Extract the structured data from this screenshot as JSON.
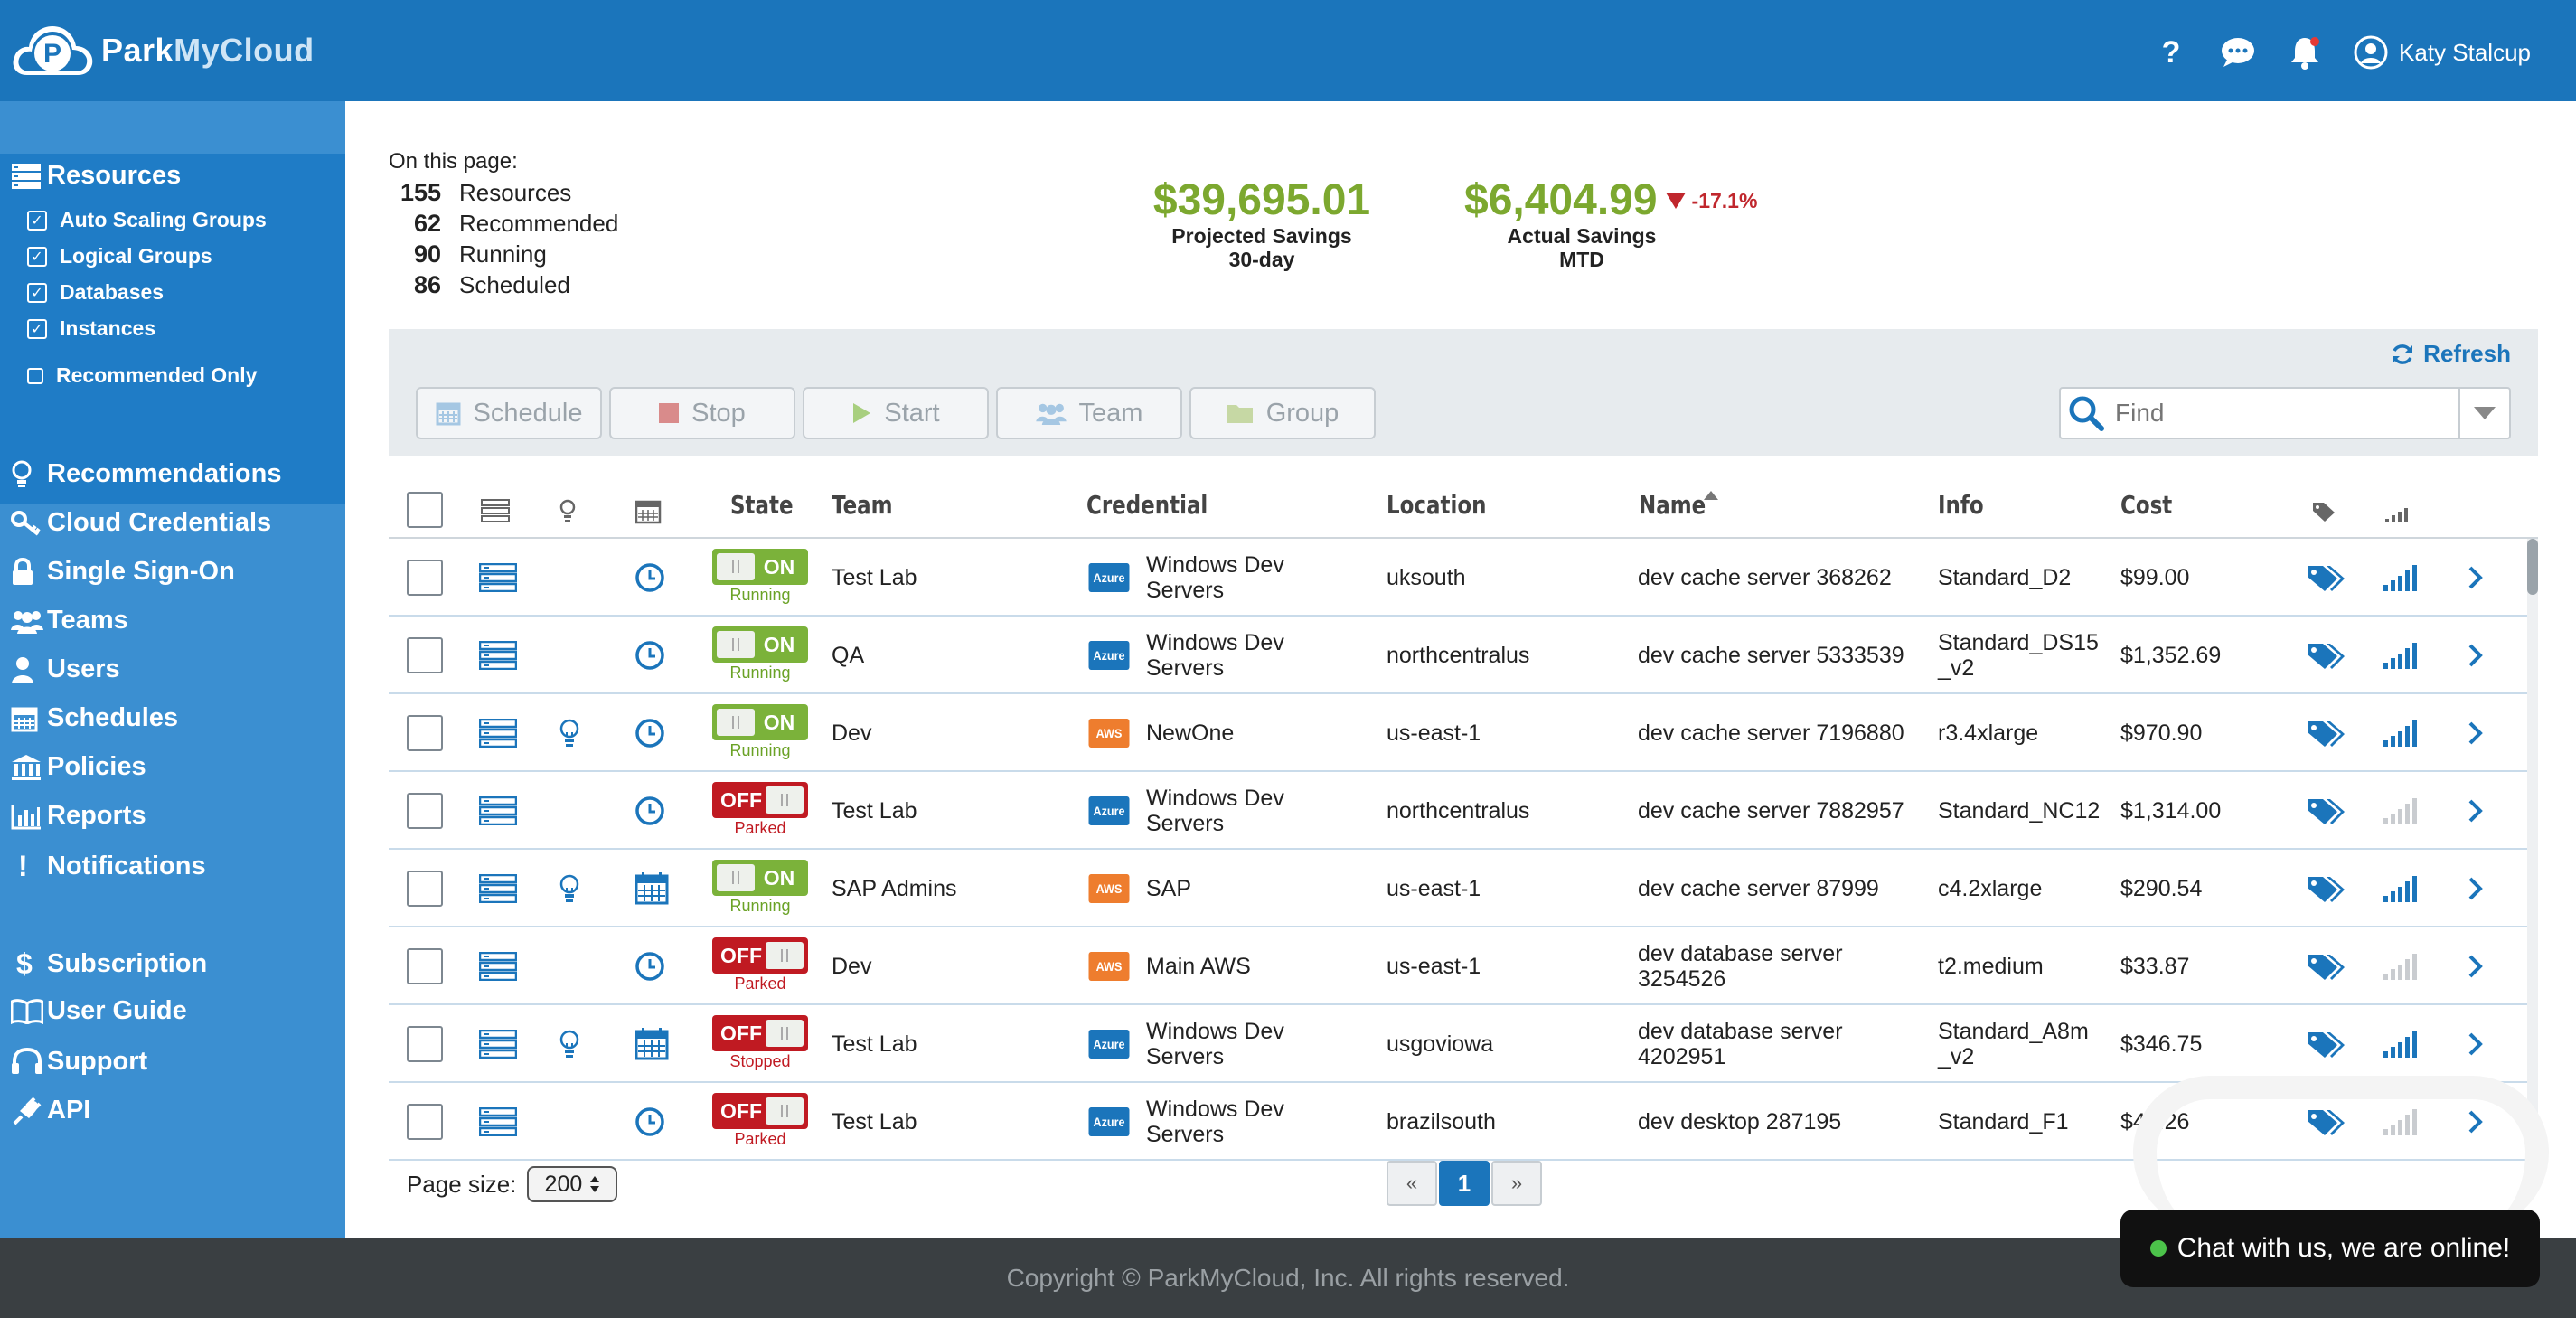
{
  "header": {
    "brand_park": "Park",
    "brand_mycloud": "MyCloud",
    "help_label": "?",
    "user_name": "Katy Stalcup"
  },
  "sidebar": {
    "resources_label": "Resources",
    "sub_items": [
      {
        "label": "Auto Scaling Groups",
        "checked": true
      },
      {
        "label": "Logical Groups",
        "checked": true
      },
      {
        "label": "Databases",
        "checked": true
      },
      {
        "label": "Instances",
        "checked": true
      },
      {
        "label": "Recommended Only",
        "checked": false
      }
    ],
    "nav": [
      {
        "label": "Recommendations",
        "icon": "lightbulb-icon"
      },
      {
        "label": "Cloud Credentials",
        "icon": "key-icon"
      },
      {
        "label": "Single Sign-On",
        "icon": "lock-icon"
      },
      {
        "label": "Teams",
        "icon": "users-icon"
      },
      {
        "label": "Users",
        "icon": "user-icon"
      },
      {
        "label": "Schedules",
        "icon": "calendar-icon"
      },
      {
        "label": "Policies",
        "icon": "bank-icon"
      },
      {
        "label": "Reports",
        "icon": "bar-chart-icon"
      },
      {
        "label": "Notifications",
        "icon": "exclamation-icon"
      },
      {
        "label": "Subscription",
        "icon": "dollar-icon"
      },
      {
        "label": "User Guide",
        "icon": "book-icon"
      },
      {
        "label": "Support",
        "icon": "headset-icon"
      },
      {
        "label": "API",
        "icon": "plug-icon"
      }
    ]
  },
  "summary": {
    "heading": "On this page:",
    "stats": [
      {
        "num": "155",
        "label": "Resources"
      },
      {
        "num": "62",
        "label": "Recommended"
      },
      {
        "num": "90",
        "label": "Running"
      },
      {
        "num": "86",
        "label": "Scheduled"
      }
    ],
    "projected": {
      "amount": "$39,695.01",
      "label1": "Projected Savings",
      "label2": "30-day"
    },
    "actual": {
      "amount": "$6,404.99",
      "delta": "-17.1%",
      "label1": "Actual Savings",
      "label2": "MTD"
    }
  },
  "toolbar": {
    "refresh": "Refresh",
    "schedule": "Schedule",
    "stop": "Stop",
    "start": "Start",
    "team": "Team",
    "group": "Group",
    "find_placeholder": "Find"
  },
  "table": {
    "headers": {
      "state": "State",
      "team": "Team",
      "credential": "Credential",
      "location": "Location",
      "name": "Name",
      "info": "Info",
      "cost": "Cost"
    },
    "rows": [
      {
        "toggle": "ON",
        "status": "Running",
        "team": "Test Lab",
        "provider": "Azure",
        "cred1": "Windows Dev",
        "cred2": "Servers",
        "location": "uksouth",
        "name1": "dev cache server 368262",
        "name2": "",
        "info1": "Standard_D2",
        "info2": "",
        "cost": "$99.00",
        "bulb": false,
        "sched": "clock",
        "signal": 4
      },
      {
        "toggle": "ON",
        "status": "Running",
        "team": "QA",
        "provider": "Azure",
        "cred1": "Windows Dev",
        "cred2": "Servers",
        "location": "northcentralus",
        "name1": "dev cache server 5333539",
        "name2": "",
        "info1": "Standard_DS15",
        "info2": "_v2",
        "cost": "$1,352.69",
        "bulb": false,
        "sched": "clock",
        "signal": 4
      },
      {
        "toggle": "ON",
        "status": "Running",
        "team": "Dev",
        "provider": "AWS",
        "cred1": "NewOne",
        "cred2": "",
        "location": "us-east-1",
        "name1": "dev cache server 7196880",
        "name2": "",
        "info1": "r3.4xlarge",
        "info2": "",
        "cost": "$970.90",
        "bulb": true,
        "sched": "clock",
        "signal": 4
      },
      {
        "toggle": "OFF",
        "status": "Parked",
        "team": "Test Lab",
        "provider": "Azure",
        "cred1": "Windows Dev",
        "cred2": "Servers",
        "location": "northcentralus",
        "name1": "dev cache server 7882957",
        "name2": "",
        "info1": "Standard_NC12",
        "info2": "",
        "cost": "$1,314.00",
        "bulb": false,
        "sched": "clock",
        "signal": 0
      },
      {
        "toggle": "ON",
        "status": "Running",
        "team": "SAP Admins",
        "provider": "AWS",
        "cred1": "SAP",
        "cred2": "",
        "location": "us-east-1",
        "name1": "dev cache server 87999",
        "name2": "",
        "info1": "c4.2xlarge",
        "info2": "",
        "cost": "$290.54",
        "bulb": true,
        "sched": "calendar",
        "signal": 4
      },
      {
        "toggle": "OFF",
        "status": "Parked",
        "team": "Dev",
        "provider": "AWS",
        "cred1": "Main AWS",
        "cred2": "",
        "location": "us-east-1",
        "name1": "dev database server",
        "name2": "3254526",
        "info1": "t2.medium",
        "info2": "",
        "cost": "$33.87",
        "bulb": false,
        "sched": "clock",
        "signal": 0
      },
      {
        "toggle": "OFF",
        "status": "Stopped",
        "team": "Test Lab",
        "provider": "Azure",
        "cred1": "Windows Dev",
        "cred2": "Servers",
        "location": "usgoviowa",
        "name1": "dev database server",
        "name2": "4202951",
        "info1": "Standard_A8m",
        "info2": "_v2",
        "cost": "$346.75",
        "bulb": true,
        "sched": "calendar",
        "signal": 4
      },
      {
        "toggle": "OFF",
        "status": "Parked",
        "team": "Test Lab",
        "provider": "Azure",
        "cred1": "Windows Dev",
        "cred2": "Servers",
        "location": "brazilsouth",
        "name1": "dev desktop 287195",
        "name2": "",
        "info1": "Standard_F1",
        "info2": "",
        "cost": "$45.26",
        "bulb": false,
        "sched": "clock",
        "signal": 0
      }
    ]
  },
  "pager": {
    "page_size_label": "Page size:",
    "page_size": "200",
    "prev": "«",
    "current": "1",
    "next": "»"
  },
  "footer": {
    "copyright": "Copyright © ParkMyCloud, Inc. All rights reserved.",
    "chat": "Chat with us, we are online!"
  },
  "colors": {
    "header_blue": "#1b75bb",
    "sidebar_blue": "#3b8fd1",
    "savings_green": "#7ca82f",
    "off_red": "#c01a22",
    "on_green": "#7bb23a"
  }
}
